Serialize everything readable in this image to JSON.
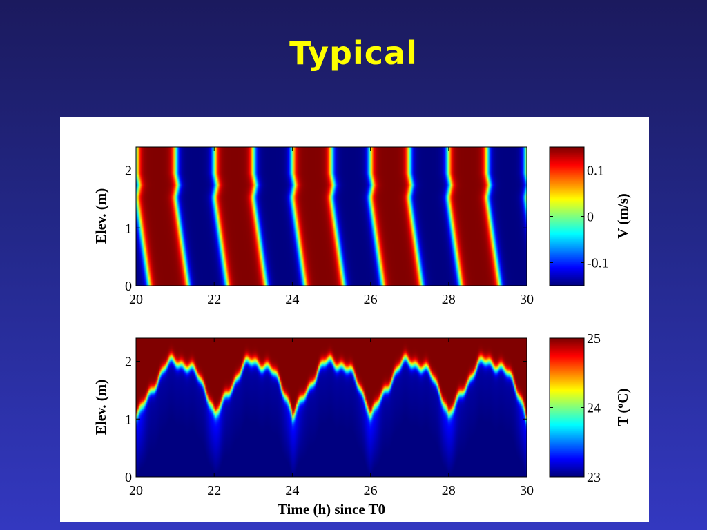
{
  "slide": {
    "title": "Typical"
  },
  "chart_data": [
    {
      "type": "heatmap",
      "name": "velocity",
      "x": {
        "label": "",
        "lim": [
          20,
          30
        ],
        "ticks": [
          20,
          22,
          24,
          26,
          28,
          30
        ]
      },
      "y": {
        "label": "Elev. (m)",
        "lim": [
          0,
          2.4
        ],
        "ticks": [
          0,
          1,
          2
        ]
      },
      "colorbar": {
        "label": "V (m/s)",
        "lim": [
          -0.15,
          0.15
        ],
        "ticks": [
          -0.1,
          0,
          0.1
        ],
        "tick_labels": [
          "-0.1",
          "0",
          "0.1"
        ],
        "colormap": "jet"
      },
      "pattern": {
        "period_h": 2,
        "description": "oscillating velocity bands, peaks near bottom lag upper layer"
      }
    },
    {
      "type": "heatmap",
      "name": "temperature",
      "x": {
        "label": "Time (h) since T0",
        "lim": [
          20,
          30
        ],
        "ticks": [
          20,
          22,
          24,
          26,
          28,
          30
        ]
      },
      "y": {
        "label": "Elev. (m)",
        "lim": [
          0,
          2.4
        ],
        "ticks": [
          0,
          1,
          2
        ]
      },
      "colorbar": {
        "label": "T (°C)",
        "label_parts": [
          "T (",
          "o",
          "C)"
        ],
        "lim": [
          23,
          25
        ],
        "ticks": [
          23,
          24,
          25
        ],
        "tick_labels": [
          "23",
          "24",
          "25"
        ],
        "colormap": "jet"
      },
      "thermocline": {
        "peak_times_h": [
          21,
          23,
          25,
          27,
          29
        ],
        "trough_times_h": [
          22,
          24,
          26,
          28,
          30
        ],
        "peak_elev_m": 2.0,
        "trough_elev_m": 1.05
      }
    }
  ]
}
